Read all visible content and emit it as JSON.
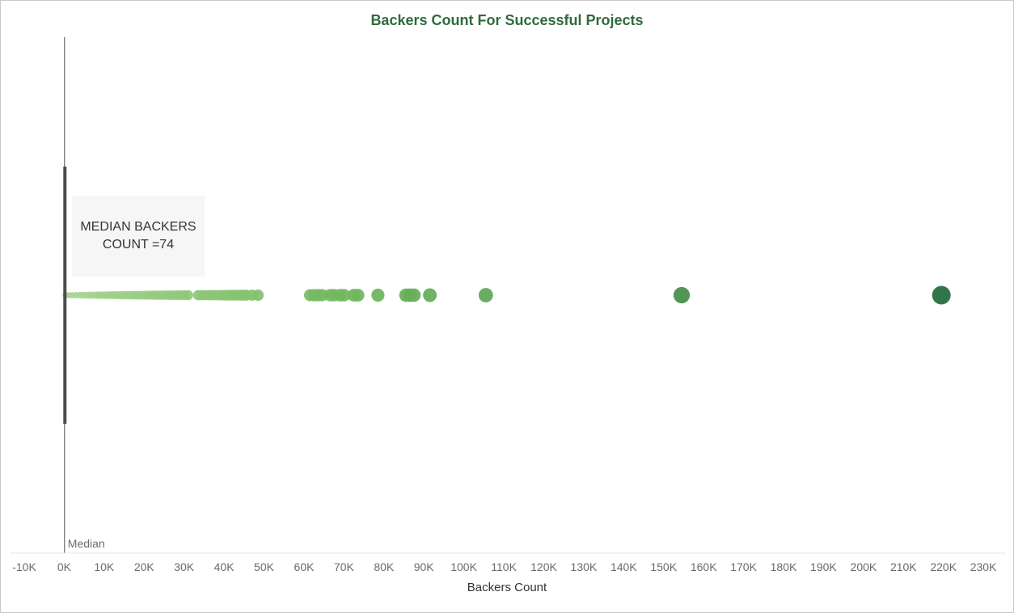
{
  "chart_data": {
    "type": "scatter",
    "title": "Backers Count For Successful Projects",
    "xlabel": "Backers Count",
    "ylabel": "",
    "xlim": [
      -10000,
      232000
    ],
    "xticks": [
      -10000,
      0,
      10000,
      20000,
      30000,
      40000,
      50000,
      60000,
      70000,
      80000,
      90000,
      100000,
      110000,
      120000,
      130000,
      140000,
      150000,
      160000,
      170000,
      180000,
      190000,
      200000,
      210000,
      220000,
      230000
    ],
    "xtick_labels": [
      "-10K",
      "0K",
      "10K",
      "20K",
      "30K",
      "40K",
      "50K",
      "60K",
      "70K",
      "80K",
      "90K",
      "100K",
      "110K",
      "120K",
      "130K",
      "140K",
      "150K",
      "160K",
      "170K",
      "180K",
      "190K",
      "200K",
      "210K",
      "220K",
      "230K"
    ],
    "grid": false,
    "reference_line": {
      "label": "Median",
      "value": 74
    },
    "annotation": "MEDIAN BACKERS COUNT =74",
    "colors": {
      "light": "#a8d58f",
      "mid": "#6db45a",
      "dark": "#1f6a3a",
      "title": "#2f6b3c",
      "reference": "#4d4d4d"
    },
    "x": [
      200,
      600,
      1200,
      2000,
      3000,
      4000,
      5000,
      6000,
      7000,
      8000,
      9000,
      10000,
      11000,
      12000,
      13000,
      14000,
      15000,
      16000,
      17000,
      18000,
      19000,
      20000,
      21000,
      22000,
      23000,
      24000,
      25000,
      26000,
      27000,
      28000,
      29000,
      30000,
      31000,
      33500,
      34500,
      35500,
      36500,
      37500,
      38500,
      39500,
      40500,
      41500,
      42500,
      43500,
      44500,
      45500,
      47000,
      48500,
      61500,
      62500,
      63500,
      64500,
      66500,
      67500,
      69000,
      70000,
      72500,
      73500,
      78500,
      85500,
      86500,
      87500,
      91500,
      105500,
      154500,
      219500
    ]
  }
}
